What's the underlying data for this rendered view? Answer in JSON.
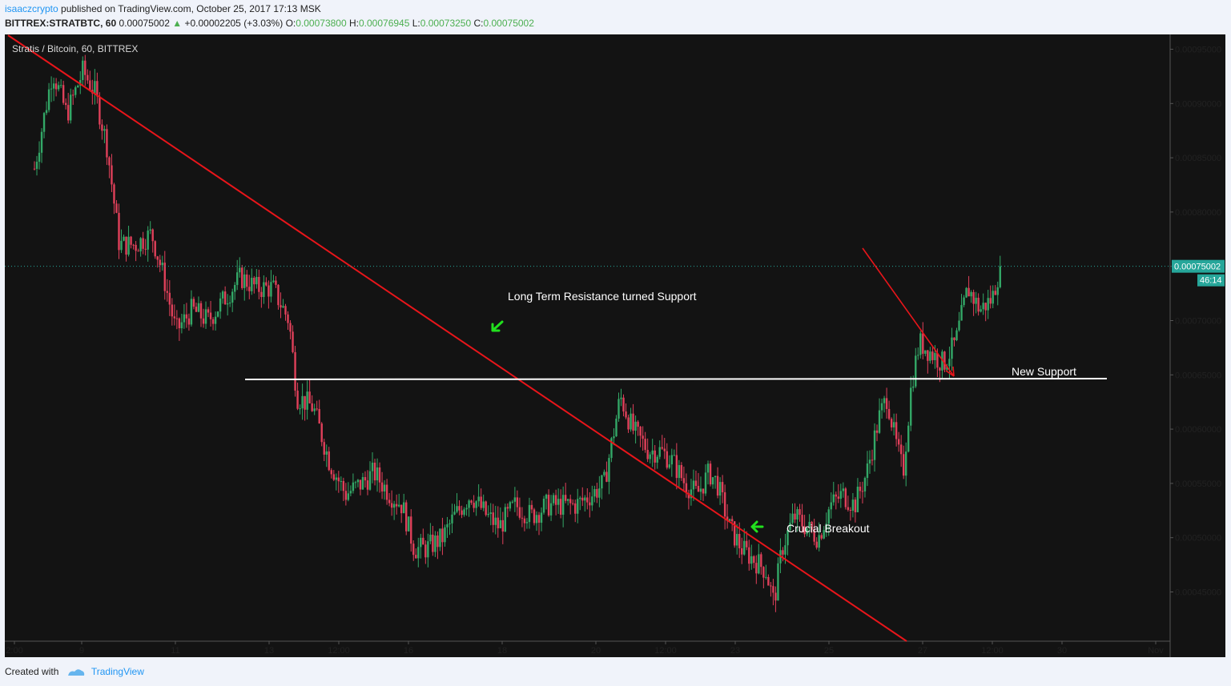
{
  "header": {
    "author": "isaaczcrypto",
    "published_text": "published on TradingView.com, October 25, 2017 17:13 MSK",
    "symbol": "BITTREX:STRATBTC, 60",
    "last": "0.00075002",
    "change": "+0.00002205 (+3.03%)",
    "o_label": "O:",
    "o": "0.00073800",
    "h_label": "H:",
    "h": "0.00076945",
    "l_label": "L:",
    "l": "0.00073250",
    "c_label": "C:",
    "c": "0.00075002"
  },
  "footer": {
    "created_with": "Created with",
    "brand": "TradingView"
  },
  "colors": {
    "pane_bg": "#131313",
    "up": "#33a867",
    "down": "#e0405a",
    "trendline": "#e8151a",
    "support_line": "#ffffff",
    "price_label": "#26a69a",
    "annotation_arrow": "#22e01e"
  },
  "chart_data": {
    "type": "candlestick",
    "legend_text": "Stratis / Bitcoin, 60, BITTREX",
    "interval": "60",
    "ylim": [
      0.00041,
      0.00096
    ],
    "y_ticks": [
      "0.00095000",
      "0.00090000",
      "0.00085000",
      "0.00080000",
      "0.00075000",
      "0.00070000",
      "0.00065000",
      "0.00060000",
      "0.00055000",
      "0.00050000",
      "0.00045000"
    ],
    "x_ticks": [
      "2:00",
      "9",
      "11",
      "13",
      "12:00",
      "16",
      "18",
      "20",
      "12:00",
      "23",
      "25",
      "27",
      "12:00",
      "30",
      "Nov"
    ],
    "last_price": "0.00075002",
    "countdown": "46:14",
    "price_path": [
      [
        0,
        0.00084
      ],
      [
        0.9,
        0.00093
      ],
      [
        1.6,
        0.00089
      ],
      [
        2.4,
        0.00093
      ],
      [
        3.0,
        0.00091
      ],
      [
        3.6,
        0.00086
      ],
      [
        4.2,
        0.00077
      ],
      [
        5.0,
        0.00077
      ],
      [
        5.8,
        0.00078
      ],
      [
        6.4,
        0.00074
      ],
      [
        7.0,
        0.00069
      ],
      [
        7.8,
        0.00071
      ],
      [
        8.6,
        0.0007
      ],
      [
        9.4,
        0.00072
      ],
      [
        10.2,
        0.00074
      ],
      [
        11.0,
        0.00073
      ],
      [
        11.8,
        0.00073
      ],
      [
        12.6,
        0.0007
      ],
      [
        13.0,
        0.00063
      ],
      [
        13.8,
        0.00062
      ],
      [
        14.6,
        0.00057
      ],
      [
        15.4,
        0.00054
      ],
      [
        16.2,
        0.00055
      ],
      [
        16.8,
        0.00056
      ],
      [
        17.6,
        0.00054
      ],
      [
        18.2,
        0.00053
      ],
      [
        18.8,
        0.00049
      ],
      [
        19.4,
        0.00049
      ],
      [
        20.2,
        0.0005
      ],
      [
        20.8,
        0.00052
      ],
      [
        21.6,
        0.00054
      ],
      [
        22.4,
        0.00052
      ],
      [
        23.0,
        0.00051
      ],
      [
        23.8,
        0.00053
      ],
      [
        24.6,
        0.00052
      ],
      [
        25.4,
        0.00053
      ],
      [
        26.0,
        0.00053
      ],
      [
        26.8,
        0.00053
      ],
      [
        27.6,
        0.00054
      ],
      [
        28.2,
        0.00055
      ],
      [
        28.6,
        0.00059
      ],
      [
        29.0,
        0.00063
      ],
      [
        29.6,
        0.0006
      ],
      [
        30.4,
        0.00058
      ],
      [
        31.0,
        0.00058
      ],
      [
        31.6,
        0.00057
      ],
      [
        32.2,
        0.00055
      ],
      [
        32.8,
        0.00054
      ],
      [
        33.4,
        0.00056
      ],
      [
        33.8,
        0.00055
      ],
      [
        34.4,
        0.00051
      ],
      [
        35.0,
        0.00049
      ],
      [
        35.6,
        0.00048
      ],
      [
        36.2,
        0.00047
      ],
      [
        36.6,
        0.00044
      ],
      [
        37.0,
        0.00049
      ],
      [
        37.6,
        0.00052
      ],
      [
        38.2,
        0.00051
      ],
      [
        38.8,
        0.0005
      ],
      [
        39.4,
        0.00053
      ],
      [
        40.0,
        0.00054
      ],
      [
        40.6,
        0.00053
      ],
      [
        41.2,
        0.00056
      ],
      [
        41.8,
        0.00061
      ],
      [
        42.2,
        0.00063
      ],
      [
        42.6,
        0.00059
      ],
      [
        43.0,
        0.00056
      ],
      [
        43.4,
        0.00064
      ],
      [
        43.8,
        0.00068
      ],
      [
        44.4,
        0.00067
      ],
      [
        45.0,
        0.00066
      ],
      [
        45.6,
        0.00068
      ],
      [
        46.2,
        0.00073
      ],
      [
        46.8,
        0.00071
      ],
      [
        47.4,
        0.00072
      ],
      [
        47.8,
        0.00075
      ]
    ],
    "annotations": {
      "resistance_text": "Long Term Resistance turned Support",
      "support_text": "New Support",
      "breakout_text": "Crucial Breakout"
    }
  }
}
